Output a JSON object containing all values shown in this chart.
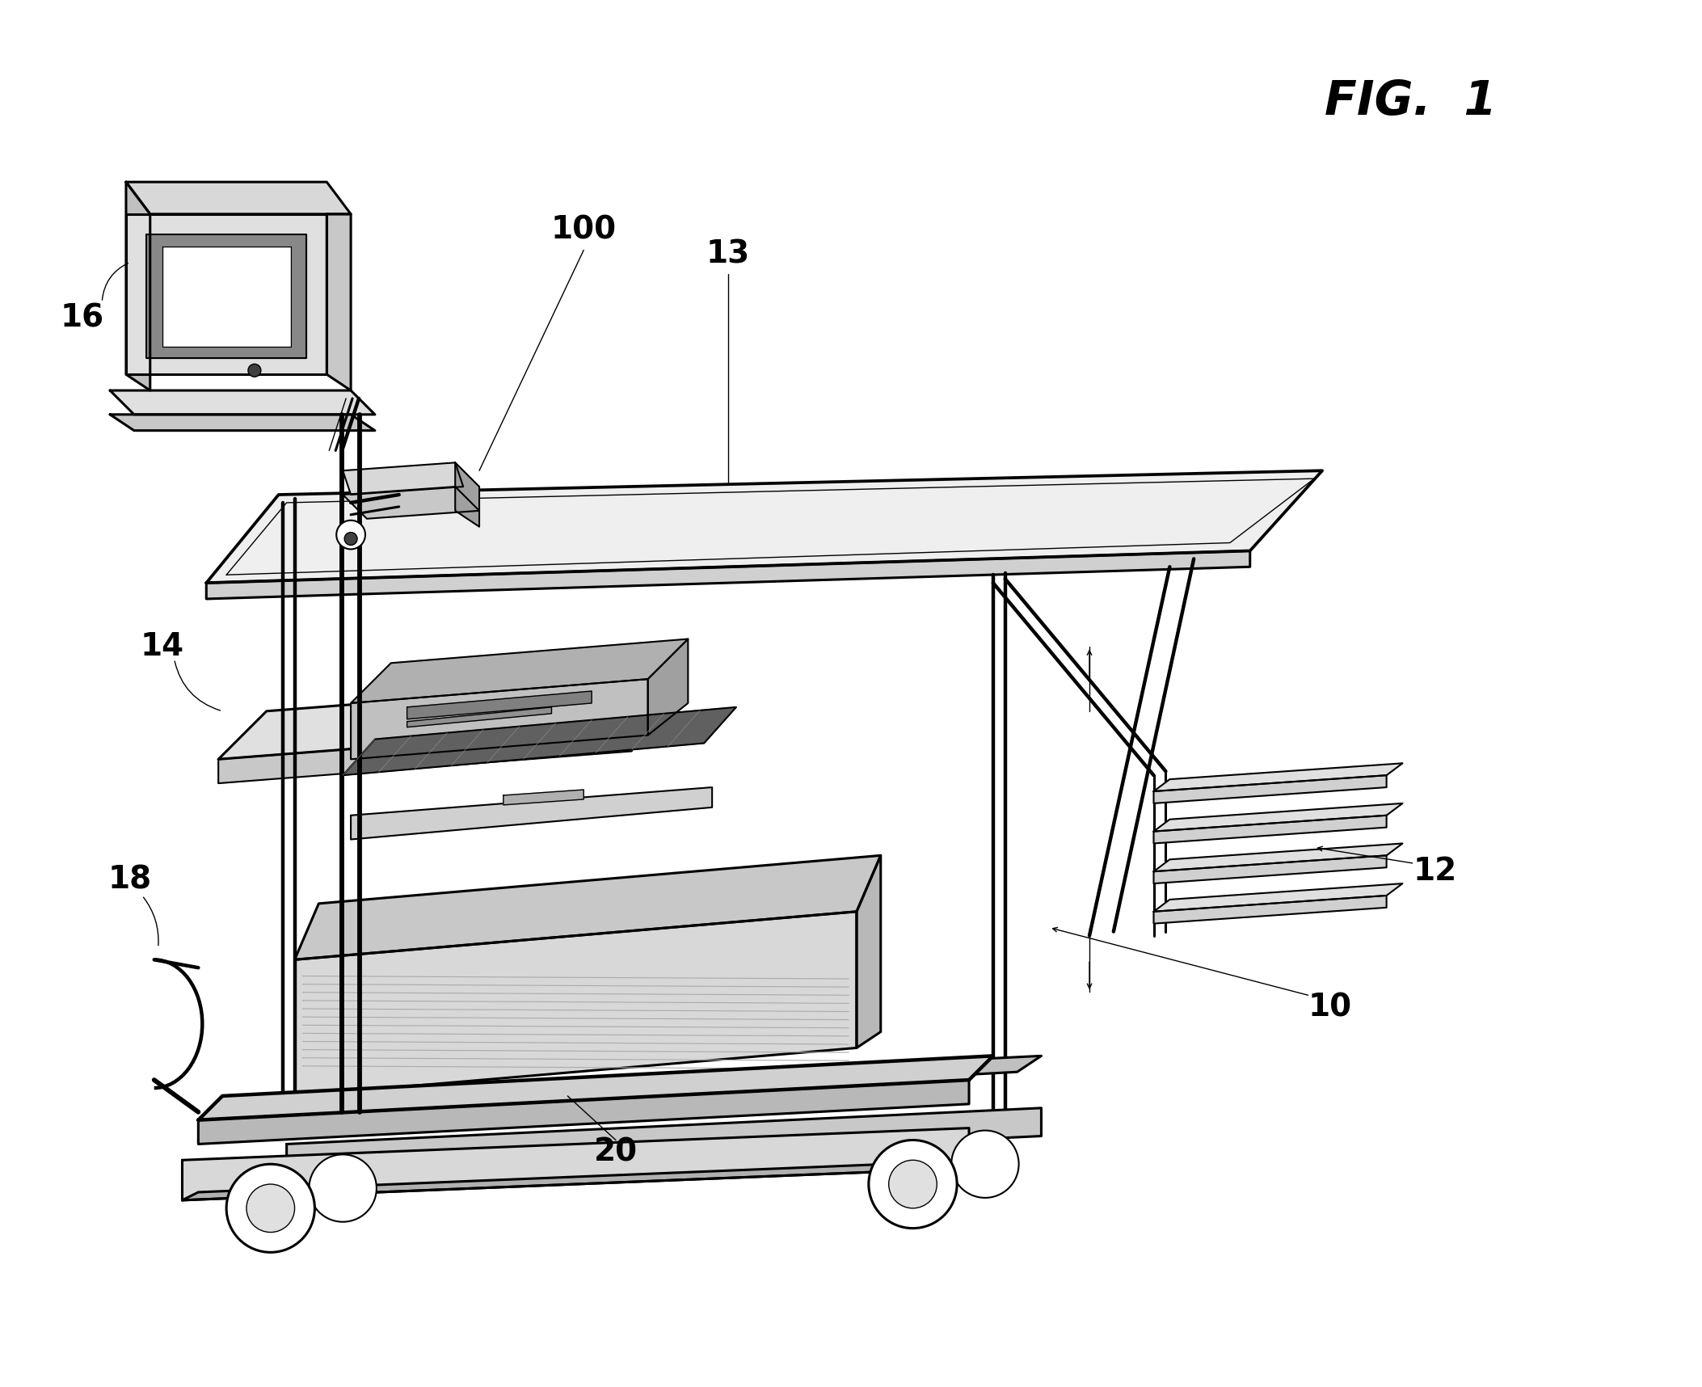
{
  "background_color": "#ffffff",
  "fig_width": 21.06,
  "fig_height": 17.16,
  "lw_main": 2.2,
  "lw_med": 1.5,
  "lw_thin": 1.0,
  "label_fontsize": 28,
  "title_fontsize": 42
}
